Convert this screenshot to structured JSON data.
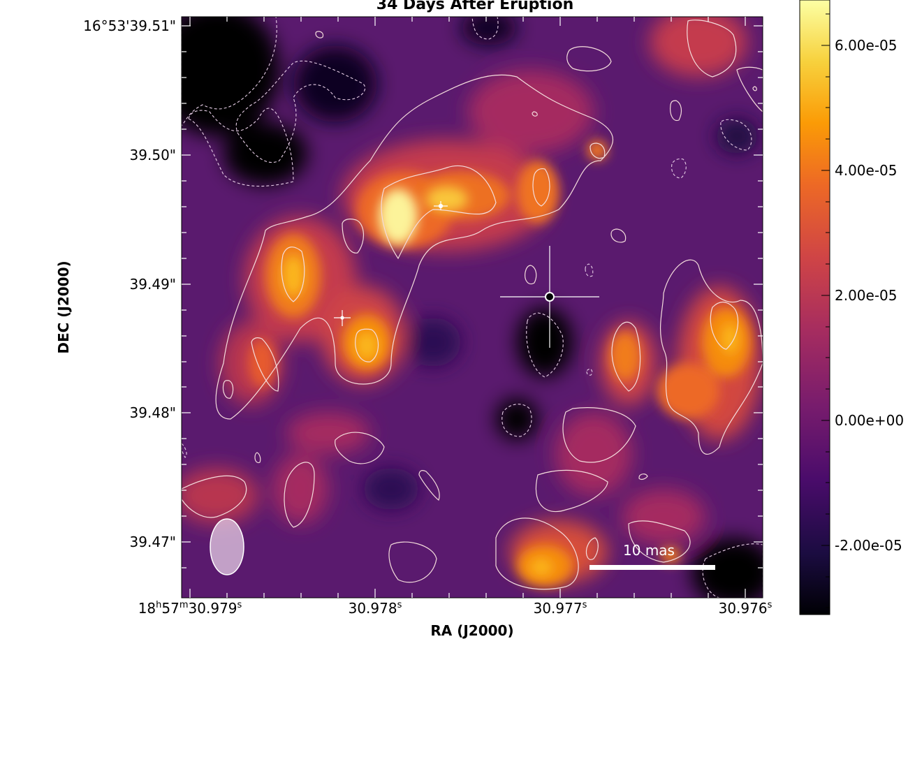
{
  "figure": {
    "title": "34 Days After Eruption",
    "x_axis_label": "RA (J2000)",
    "y_axis_label": "DEC (J2000)",
    "x_ticks": [
      {
        "h": "18",
        "m": "57",
        "s": "30.979",
        "unit": "s"
      },
      {
        "label": "30.978",
        "unit": "s"
      },
      {
        "label": "30.977",
        "unit": "s"
      },
      {
        "label": "30.976",
        "unit": "s"
      }
    ],
    "y_ticks": [
      "16°53'39.51\"",
      "39.50\"",
      "39.49\"",
      "39.48\"",
      "39.47\""
    ],
    "colorbar": {
      "colormap": "inferno",
      "ticks": [
        "6.00e-05",
        "4.00e-05",
        "2.00e-05",
        "0.00e+00",
        "-2.00e-05"
      ]
    },
    "scale_bar_label": "10 mas",
    "colors": {
      "contour": "#f4dcdc",
      "beam": "#e6cde6",
      "markers": "#ffffff"
    }
  }
}
